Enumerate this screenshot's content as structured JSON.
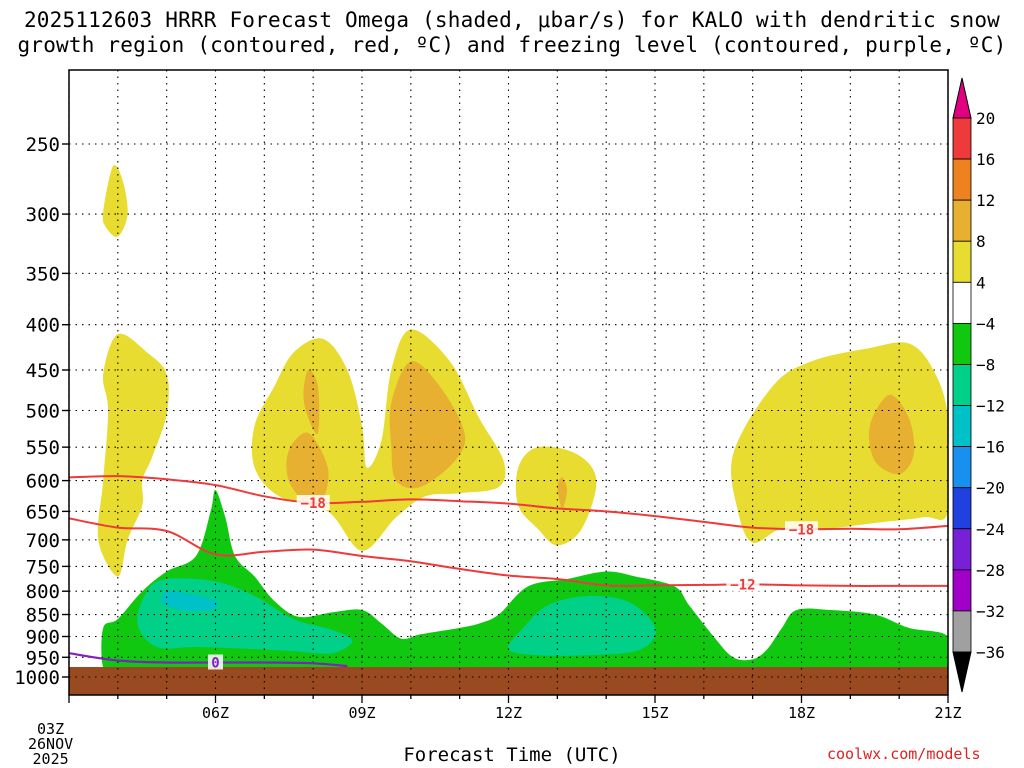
{
  "title_line1": "2025112603 HRRR Forecast Omega (shaded, μbar/s) for KALO with dendritic snow",
  "title_line2": "growth region (contoured, red, ºC) and freezing level (contoured, purple, ºC)",
  "footer": "coolwx.com/models",
  "chart_data": {
    "type": "heatmap",
    "xlabel": "Forecast Time (UTC)",
    "x_start_label": [
      "03Z",
      "26NOV",
      "2025"
    ],
    "x_ticks": [
      {
        "hour": 3,
        "label": "03Z"
      },
      {
        "hour": 6,
        "label": "06Z"
      },
      {
        "hour": 9,
        "label": "09Z"
      },
      {
        "hour": 12,
        "label": "12Z"
      },
      {
        "hour": 15,
        "label": "15Z"
      },
      {
        "hour": 18,
        "label": "18Z"
      },
      {
        "hour": 21,
        "label": "21Z"
      }
    ],
    "xlim": [
      3,
      21
    ],
    "y_ticks": [
      250,
      300,
      350,
      400,
      450,
      500,
      550,
      600,
      650,
      700,
      750,
      800,
      850,
      900,
      950,
      1000
    ],
    "ylim": [
      200,
      1025
    ],
    "y_scale": "log-pressure (inverted)",
    "grid": true,
    "colorbar": {
      "labels": [
        "20",
        "16",
        "12",
        "8",
        "4",
        "-4",
        "-8",
        "-12",
        "-16",
        "-20",
        "-24",
        "-28",
        "-32",
        "-36"
      ],
      "colors": [
        "#e0007f",
        "#ee3a3a",
        "#ee8220",
        "#e8b030",
        "#e8dc30",
        "#ffffff",
        "#10c810",
        "#00d088",
        "#00c0c8",
        "#1890f0",
        "#2040e0",
        "#7820d8",
        "#a000c8",
        "#a0a0a0",
        "#000000"
      ]
    },
    "contour_lines": [
      {
        "label": "-18",
        "color": "#ee3a3a",
        "points": [
          [
            3,
            595
          ],
          [
            4,
            593
          ],
          [
            5,
            598
          ],
          [
            6,
            607
          ],
          [
            7,
            625
          ],
          [
            8,
            636
          ],
          [
            9,
            634
          ],
          [
            10,
            630
          ],
          [
            11,
            633
          ],
          [
            12,
            637
          ],
          [
            13,
            645
          ],
          [
            14,
            650
          ],
          [
            15,
            658
          ],
          [
            16,
            668
          ],
          [
            17,
            678
          ],
          [
            18,
            681
          ],
          [
            19,
            680
          ],
          [
            20,
            681
          ],
          [
            21,
            675
          ]
        ]
      },
      {
        "label": "-12",
        "color": "#ee3a3a",
        "points": [
          [
            3,
            662
          ],
          [
            4,
            678
          ],
          [
            5,
            684
          ],
          [
            6,
            727
          ],
          [
            7,
            722
          ],
          [
            8,
            718
          ],
          [
            9,
            730
          ],
          [
            10,
            740
          ],
          [
            11,
            755
          ],
          [
            12,
            768
          ],
          [
            13,
            775
          ],
          [
            14,
            788
          ],
          [
            15,
            788
          ],
          [
            16,
            787
          ],
          [
            17,
            786
          ],
          [
            18,
            788
          ],
          [
            19,
            789
          ],
          [
            20,
            789
          ],
          [
            21,
            789
          ]
        ]
      },
      {
        "label": "0",
        "color": "#8020c0",
        "points": [
          [
            3,
            940
          ],
          [
            4,
            958
          ],
          [
            5,
            963
          ],
          [
            6,
            963
          ],
          [
            7,
            963
          ],
          [
            8,
            965
          ],
          [
            8.7,
            972
          ]
        ]
      }
    ],
    "shaded_regions": [
      {
        "value_range": "4 to 8",
        "color": "#e8dc30",
        "points": [
          [
            3.7,
            298
          ],
          [
            3.9,
            265
          ],
          [
            4.1,
            275
          ],
          [
            4.2,
            300
          ],
          [
            4.0,
            318
          ],
          [
            3.75,
            310
          ]
        ]
      },
      {
        "value_range": "4 to 8",
        "color": "#e8dc30",
        "points": [
          [
            3.7,
            455
          ],
          [
            4.0,
            410
          ],
          [
            4.6,
            430
          ],
          [
            5.0,
            455
          ],
          [
            5.0,
            505
          ],
          [
            4.7,
            565
          ],
          [
            4.5,
            600
          ],
          [
            4.5,
            640
          ],
          [
            4.2,
            700
          ],
          [
            4.0,
            770
          ],
          [
            3.6,
            700
          ],
          [
            3.7,
            600
          ],
          [
            3.8,
            500
          ]
        ]
      },
      {
        "value_range": "4 to 8",
        "color": "#e8dc30",
        "points": [
          [
            6.8,
            520
          ],
          [
            7.2,
            470
          ],
          [
            7.6,
            430
          ],
          [
            8.2,
            415
          ],
          [
            8.7,
            450
          ],
          [
            9.0,
            520
          ],
          [
            9.1,
            580
          ],
          [
            9.4,
            540
          ],
          [
            9.6,
            450
          ],
          [
            10.0,
            405
          ],
          [
            10.8,
            440
          ],
          [
            11.4,
            510
          ],
          [
            11.9,
            570
          ],
          [
            11.8,
            610
          ],
          [
            11.0,
            620
          ],
          [
            10.3,
            625
          ],
          [
            9.7,
            660
          ],
          [
            9.0,
            720
          ],
          [
            8.3,
            650
          ],
          [
            7.3,
            625
          ],
          [
            6.8,
            580
          ]
        ]
      },
      {
        "value_range": "8 to 12",
        "color": "#e8b030",
        "points": [
          [
            7.5,
            555
          ],
          [
            7.9,
            530
          ],
          [
            8.3,
            580
          ],
          [
            8.2,
            630
          ],
          [
            7.9,
            640
          ],
          [
            7.5,
            600
          ]
        ]
      },
      {
        "value_range": "8 to 12",
        "color": "#e8b030",
        "points": [
          [
            7.9,
            450
          ],
          [
            8.1,
            470
          ],
          [
            8.1,
            530
          ],
          [
            7.9,
            510
          ],
          [
            7.8,
            480
          ]
        ]
      },
      {
        "value_range": "8 to 12",
        "color": "#e8b030",
        "points": [
          [
            9.6,
            490
          ],
          [
            10.0,
            440
          ],
          [
            10.6,
            470
          ],
          [
            11.1,
            530
          ],
          [
            10.9,
            570
          ],
          [
            10.2,
            610
          ],
          [
            9.7,
            600
          ],
          [
            9.6,
            550
          ]
        ]
      },
      {
        "value_range": "4 to 8",
        "color": "#e8dc30",
        "points": [
          [
            12.2,
            580
          ],
          [
            12.6,
            550
          ],
          [
            13.4,
            560
          ],
          [
            13.8,
            600
          ],
          [
            13.5,
            680
          ],
          [
            13.0,
            710
          ],
          [
            12.6,
            680
          ],
          [
            12.2,
            640
          ]
        ]
      },
      {
        "value_range": "8 to 12",
        "color": "#e8b030",
        "points": [
          [
            13.0,
            610
          ],
          [
            13.1,
            595
          ],
          [
            13.2,
            615
          ],
          [
            13.1,
            645
          ]
        ]
      },
      {
        "value_range": "4 to 8",
        "color": "#e8dc30",
        "points": [
          [
            16.6,
            560
          ],
          [
            17.4,
            470
          ],
          [
            18.2,
            440
          ],
          [
            19.4,
            425
          ],
          [
            20.2,
            420
          ],
          [
            20.7,
            450
          ],
          [
            21.0,
            510
          ],
          [
            21.0,
            650
          ],
          [
            20.5,
            660
          ],
          [
            19.5,
            670
          ],
          [
            18.5,
            680
          ],
          [
            17.6,
            680
          ],
          [
            17.0,
            705
          ],
          [
            16.7,
            650
          ]
        ]
      },
      {
        "value_range": "8 to 12",
        "color": "#e8b030",
        "points": [
          [
            19.4,
            520
          ],
          [
            19.8,
            480
          ],
          [
            20.2,
            510
          ],
          [
            20.3,
            560
          ],
          [
            20.0,
            590
          ],
          [
            19.5,
            570
          ]
        ]
      },
      {
        "value_range": "-8 to -4",
        "color": "#10c810",
        "points": [
          [
            3.7,
            880
          ],
          [
            4.0,
            860
          ],
          [
            4.5,
            800
          ],
          [
            5.0,
            760
          ],
          [
            5.6,
            730
          ],
          [
            5.9,
            650
          ],
          [
            6.0,
            615
          ],
          [
            6.2,
            660
          ],
          [
            6.4,
            730
          ],
          [
            6.8,
            770
          ],
          [
            7.2,
            820
          ],
          [
            7.7,
            855
          ],
          [
            8.4,
            845
          ],
          [
            9.0,
            840
          ],
          [
            9.4,
            870
          ],
          [
            9.8,
            905
          ],
          [
            10.2,
            895
          ],
          [
            11.0,
            880
          ],
          [
            11.4,
            870
          ],
          [
            11.8,
            850
          ],
          [
            12.4,
            790
          ],
          [
            13.2,
            775
          ],
          [
            14.0,
            760
          ],
          [
            14.6,
            770
          ],
          [
            15.4,
            790
          ],
          [
            15.7,
            830
          ],
          [
            16.2,
            900
          ],
          [
            16.6,
            950
          ],
          [
            17.0,
            955
          ],
          [
            17.3,
            930
          ],
          [
            17.6,
            880
          ],
          [
            17.9,
            840
          ],
          [
            18.6,
            840
          ],
          [
            19.5,
            850
          ],
          [
            20.2,
            880
          ],
          [
            21.0,
            900
          ],
          [
            21.0,
            980
          ],
          [
            19.0,
            985
          ],
          [
            16.0,
            985
          ],
          [
            12.0,
            985
          ],
          [
            8.0,
            985
          ],
          [
            6.0,
            985
          ],
          [
            4.0,
            985
          ],
          [
            3.7,
            975
          ]
        ]
      },
      {
        "value_range": "-12 to -8",
        "color": "#00d088",
        "points": [
          [
            4.4,
            870
          ],
          [
            4.6,
            800
          ],
          [
            5.0,
            775
          ],
          [
            6.0,
            780
          ],
          [
            6.8,
            810
          ],
          [
            7.6,
            860
          ],
          [
            8.4,
            885
          ],
          [
            8.8,
            910
          ],
          [
            8.4,
            940
          ],
          [
            7.6,
            935
          ],
          [
            6.8,
            930
          ],
          [
            5.6,
            925
          ],
          [
            4.8,
            925
          ]
        ]
      },
      {
        "value_range": "-16 to -12",
        "color": "#00c0c8",
        "points": [
          [
            4.9,
            820
          ],
          [
            5.0,
            800
          ],
          [
            5.4,
            805
          ],
          [
            6.0,
            820
          ],
          [
            5.9,
            840
          ],
          [
            5.3,
            840
          ],
          [
            5.0,
            830
          ]
        ]
      },
      {
        "value_range": "-12 to -8",
        "color": "#00d088",
        "points": [
          [
            12.0,
            930
          ],
          [
            12.3,
            880
          ],
          [
            12.8,
            830
          ],
          [
            13.6,
            810
          ],
          [
            14.4,
            820
          ],
          [
            14.9,
            860
          ],
          [
            15.0,
            900
          ],
          [
            14.6,
            935
          ],
          [
            13.6,
            945
          ],
          [
            12.6,
            945
          ]
        ]
      }
    ]
  }
}
